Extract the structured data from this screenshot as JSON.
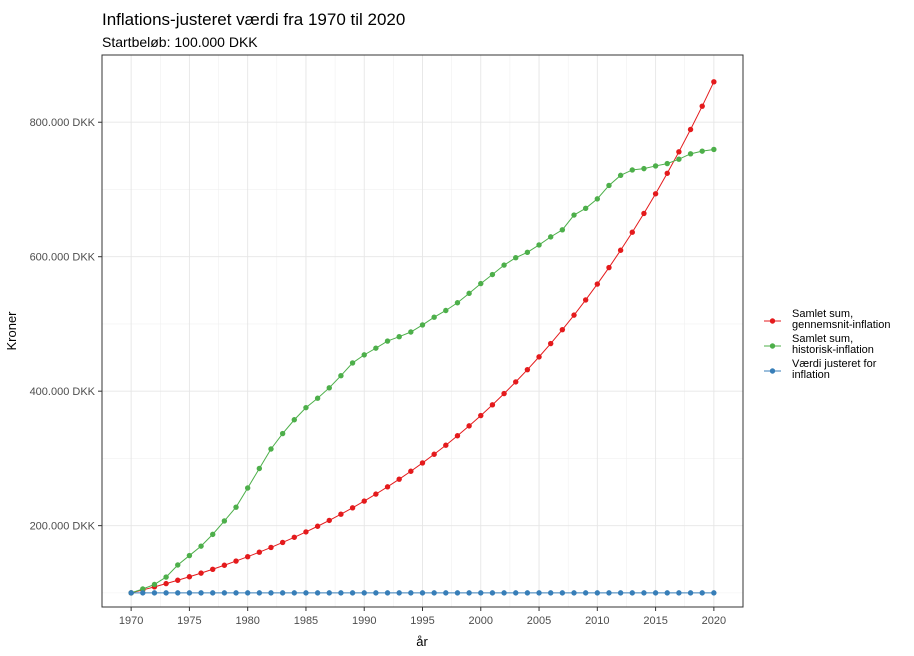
{
  "chart_data": {
    "type": "line",
    "title": "Inflations-justeret værdi fra 1970 til 2020",
    "subtitle": "Startbeløb: 100.000 DKK",
    "xlabel": "år",
    "ylabel": "Kroner",
    "xlim": [
      1967.5,
      2022.5
    ],
    "ylim": [
      79000,
      900000
    ],
    "x_ticks": [
      1970,
      1975,
      1980,
      1985,
      1990,
      1995,
      2000,
      2005,
      2010,
      2015,
      2020
    ],
    "x_tick_labels": [
      "1970",
      "1975",
      "1980",
      "1985",
      "1990",
      "1995",
      "2000",
      "2005",
      "2010",
      "2015",
      "2020"
    ],
    "y_ticks": [
      200000,
      400000,
      600000,
      800000
    ],
    "y_tick_labels": [
      "200.000 DKK",
      "400.000 DKK",
      "600.000 DKK",
      "800.000 DKK"
    ],
    "grid": true,
    "legend_position": "right",
    "x": [
      1970,
      1971,
      1972,
      1973,
      1974,
      1975,
      1976,
      1977,
      1978,
      1979,
      1980,
      1981,
      1982,
      1983,
      1984,
      1985,
      1986,
      1987,
      1988,
      1989,
      1990,
      1991,
      1992,
      1993,
      1994,
      1995,
      1996,
      1997,
      1998,
      1999,
      2000,
      2001,
      2002,
      2003,
      2004,
      2005,
      2006,
      2007,
      2008,
      2009,
      2010,
      2011,
      2012,
      2013,
      2014,
      2015,
      2016,
      2017,
      2018,
      2019,
      2020
    ],
    "series": [
      {
        "name": "Samlet sum,\ngennemsnit-inflation",
        "color": "#e41a1c",
        "values": [
          100000,
          104400,
          109000,
          113800,
          118800,
          124000,
          129400,
          135100,
          141100,
          147300,
          153800,
          160500,
          167600,
          175000,
          182700,
          190700,
          199100,
          207800,
          217000,
          226500,
          236500,
          246900,
          257700,
          269100,
          280900,
          293300,
          306200,
          319600,
          333700,
          348400,
          363700,
          379700,
          396400,
          413800,
          432000,
          451000,
          470800,
          491500,
          513100,
          535700,
          559300,
          583900,
          609600,
          636400,
          664400,
          693600,
          724100,
          756000,
          789200,
          823900,
          860100
        ]
      },
      {
        "name": "Samlet sum,\nhistorisk-inflation",
        "color": "#4daf4a",
        "values": [
          100000,
          105800,
          112500,
          123500,
          141500,
          155500,
          169500,
          187000,
          207000,
          227500,
          256000,
          285000,
          314000,
          337000,
          357500,
          375500,
          389500,
          405000,
          423000,
          442000,
          454000,
          464000,
          474500,
          481000,
          488000,
          498500,
          510000,
          520000,
          531500,
          545500,
          560000,
          573500,
          587500,
          598500,
          606500,
          617500,
          629500,
          640000,
          662000,
          672000,
          686000,
          706000,
          721000,
          729000,
          731000,
          735000,
          738500,
          745000,
          753000,
          757000,
          759500
        ]
      },
      {
        "name": "Værdi justeret for\ninflation",
        "color": "#377eb8",
        "values": [
          100000,
          100000,
          100000,
          100000,
          100000,
          100000,
          100000,
          100000,
          100000,
          100000,
          100000,
          100000,
          100000,
          100000,
          100000,
          100000,
          100000,
          100000,
          100000,
          100000,
          100000,
          100000,
          100000,
          100000,
          100000,
          100000,
          100000,
          100000,
          100000,
          100000,
          100000,
          100000,
          100000,
          100000,
          100000,
          100000,
          100000,
          100000,
          100000,
          100000,
          100000,
          100000,
          100000,
          100000,
          100000,
          100000,
          100000,
          100000,
          100000,
          100000,
          100000
        ]
      }
    ]
  }
}
